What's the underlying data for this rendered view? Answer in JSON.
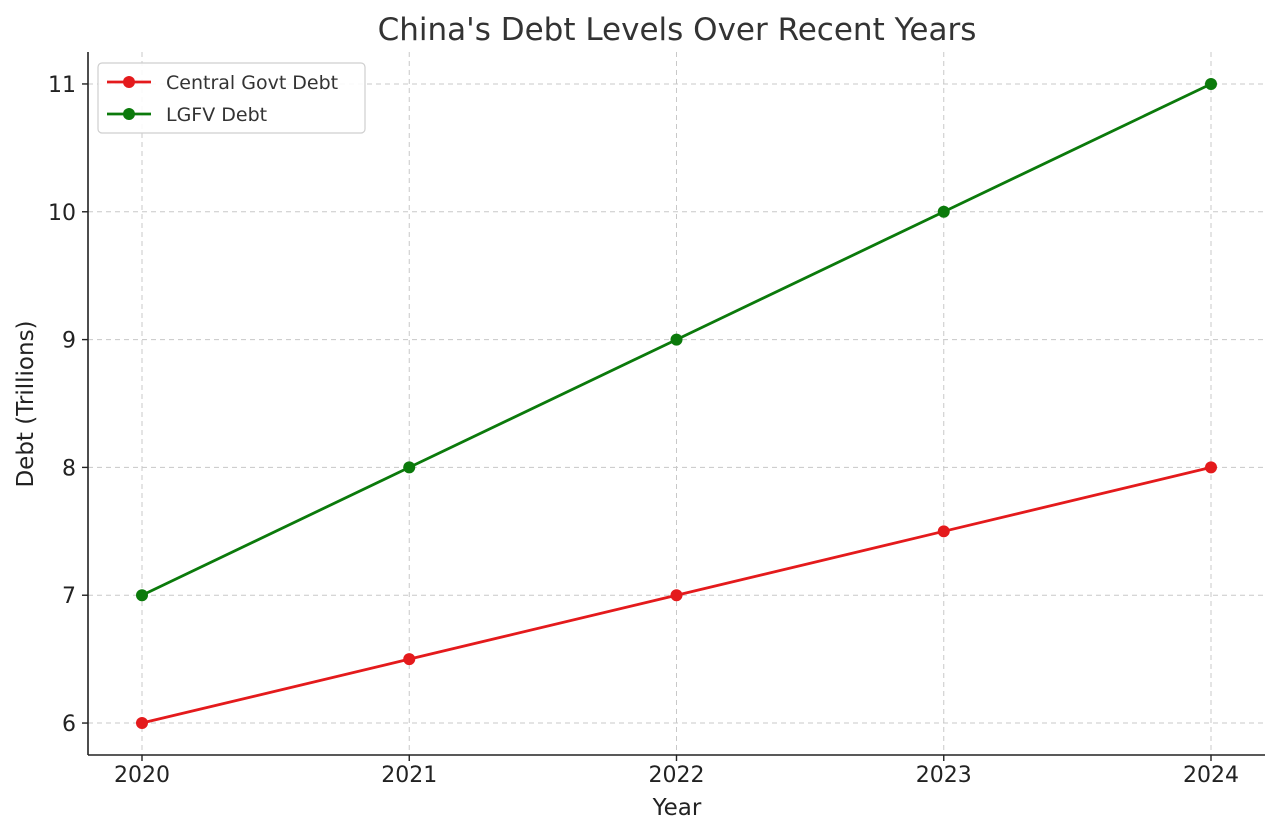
{
  "chart_data": {
    "type": "line",
    "title": "China's Debt Levels Over Recent Years",
    "xlabel": "Year",
    "ylabel": "Debt (Trillions)",
    "x": [
      "2020",
      "2021",
      "2022",
      "2023",
      "2024"
    ],
    "x_ticks": [
      "2020",
      "2021",
      "2022",
      "2023",
      "2024"
    ],
    "y_ticks": [
      "6",
      "7",
      "8",
      "9",
      "10",
      "11"
    ],
    "ylim": [
      5.75,
      11.25
    ],
    "grid": true,
    "legend_position": "top-left",
    "series": [
      {
        "name": "Central Govt Debt",
        "values": [
          6,
          6.5,
          7,
          7.5,
          8
        ],
        "color": "#e41a1c",
        "marker": "circle"
      },
      {
        "name": "LGFV Debt",
        "values": [
          7,
          8,
          9,
          10,
          11
        ],
        "color": "#0b7a0b",
        "marker": "circle"
      }
    ]
  }
}
